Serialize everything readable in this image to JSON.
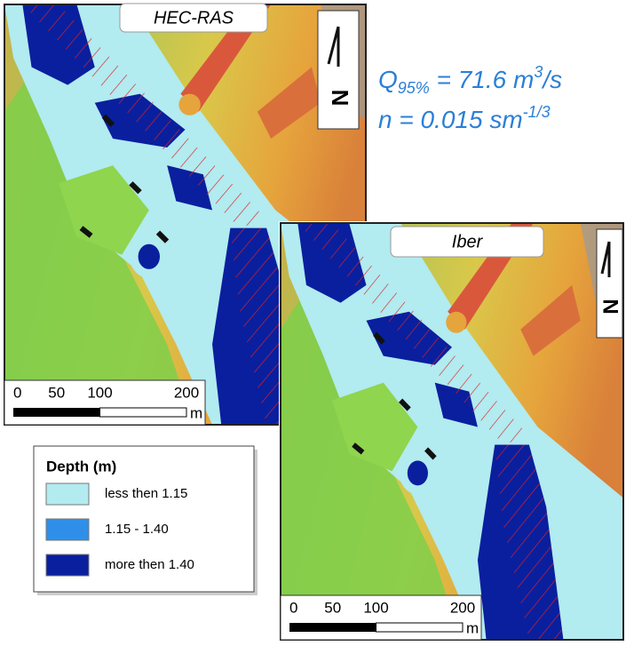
{
  "panels": [
    {
      "title": "HEC-RAS",
      "north": "N",
      "scale": {
        "ticks": [
          0,
          50,
          100,
          200
        ],
        "unit": "m"
      }
    },
    {
      "title": "Iber",
      "north": "N",
      "scale": {
        "ticks": [
          0,
          50,
          100,
          200
        ],
        "unit": "m"
      }
    }
  ],
  "annotation": {
    "discharge": {
      "symbol": "Q",
      "subscript": "95%",
      "text": " = 71.6 m",
      "superscript": "3",
      "tail": "/s"
    },
    "manning": {
      "text": "n = 0.015 sm",
      "superscript": "-1/3"
    },
    "color": "#2b7fd6"
  },
  "legend": {
    "title": "Depth (m)",
    "items": [
      {
        "label": "less then 1.15",
        "color": "#b2ebf0"
      },
      {
        "label": "1.15 - 1.40",
        "color": "#2f8fe8"
      },
      {
        "label": "more then 1.40",
        "color": "#0a1f9e"
      }
    ]
  }
}
